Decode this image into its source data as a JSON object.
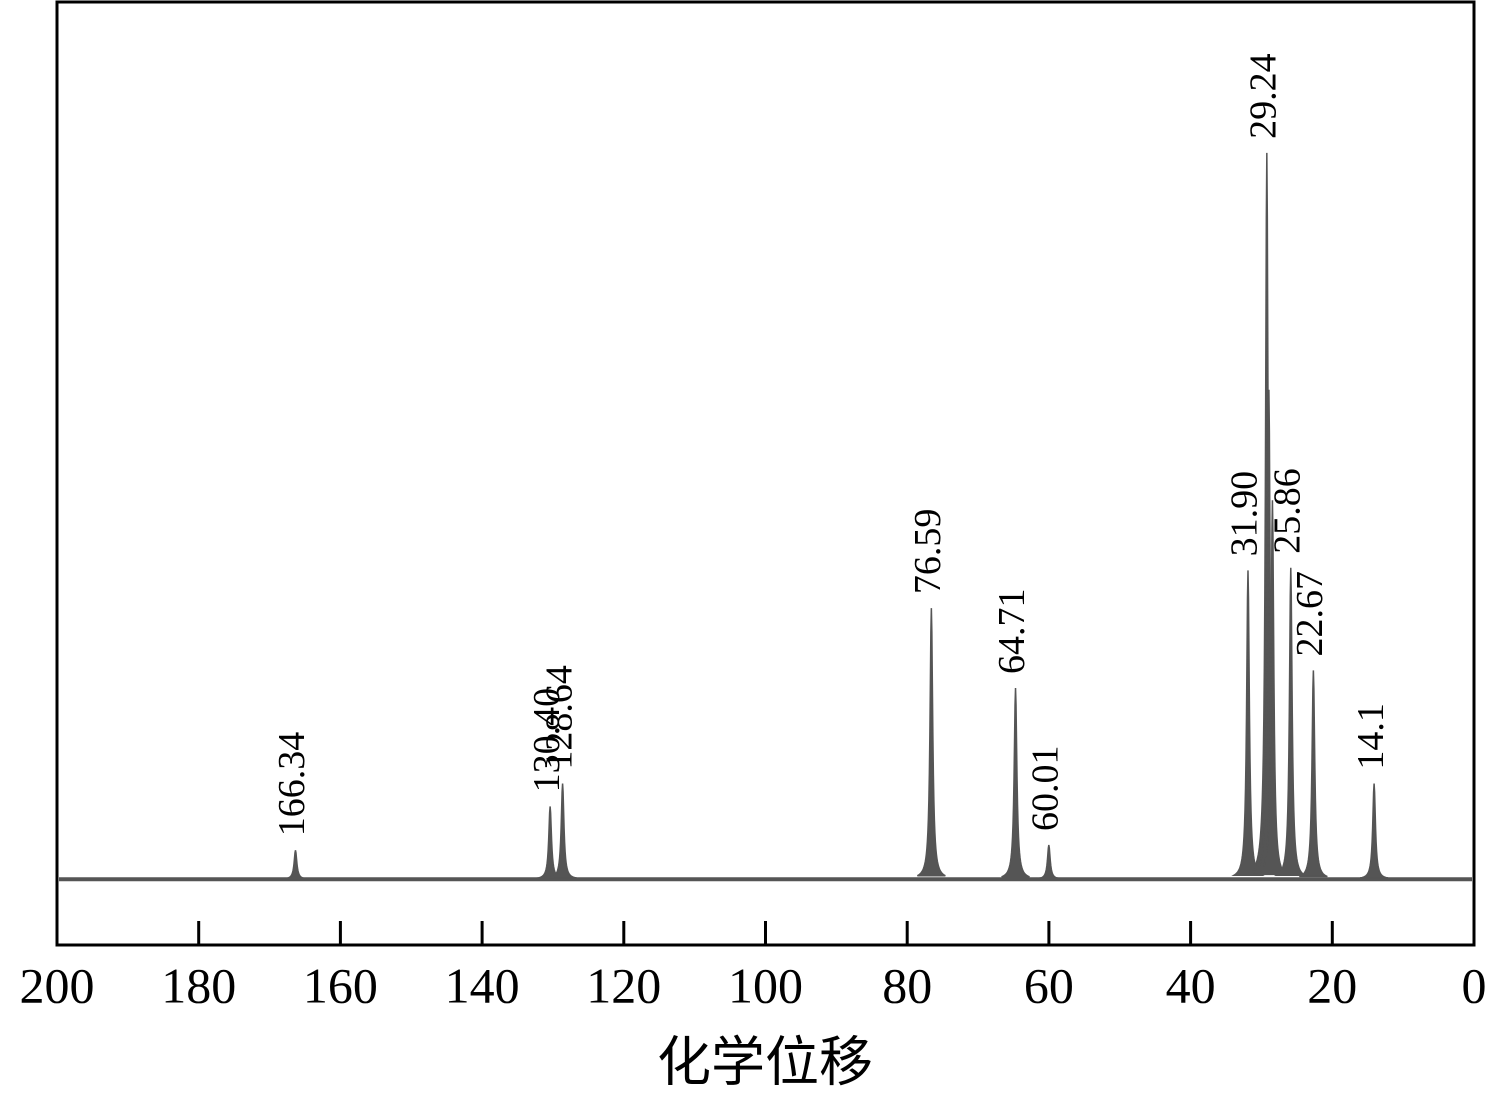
{
  "chart_data": {
    "type": "spectrum",
    "xlabel": "化学位移",
    "x": [
      166.34,
      130.4,
      128.64,
      76.59,
      64.71,
      60.01,
      31.9,
      29.24,
      28.95,
      28.45,
      25.86,
      22.67,
      14.1
    ],
    "x_labels": [
      "166.34",
      "130.40",
      "128.64",
      "76.59",
      "64.71",
      "60.01",
      "31.90",
      "29.24",
      null,
      null,
      "25.86",
      "22.67",
      "14.1"
    ],
    "values": [
      3.3,
      8.3,
      10.9,
      30.9,
      21.8,
      3.9,
      35.2,
      82.8,
      55.8,
      43.2,
      35.5,
      23.8,
      10.9
    ],
    "xlim": [
      200,
      0
    ],
    "xticks": [
      200,
      180,
      160,
      140,
      120,
      100,
      80,
      60,
      40,
      20,
      0
    ],
    "ylim": [
      -7.5,
      100
    ],
    "color": "#555555"
  }
}
